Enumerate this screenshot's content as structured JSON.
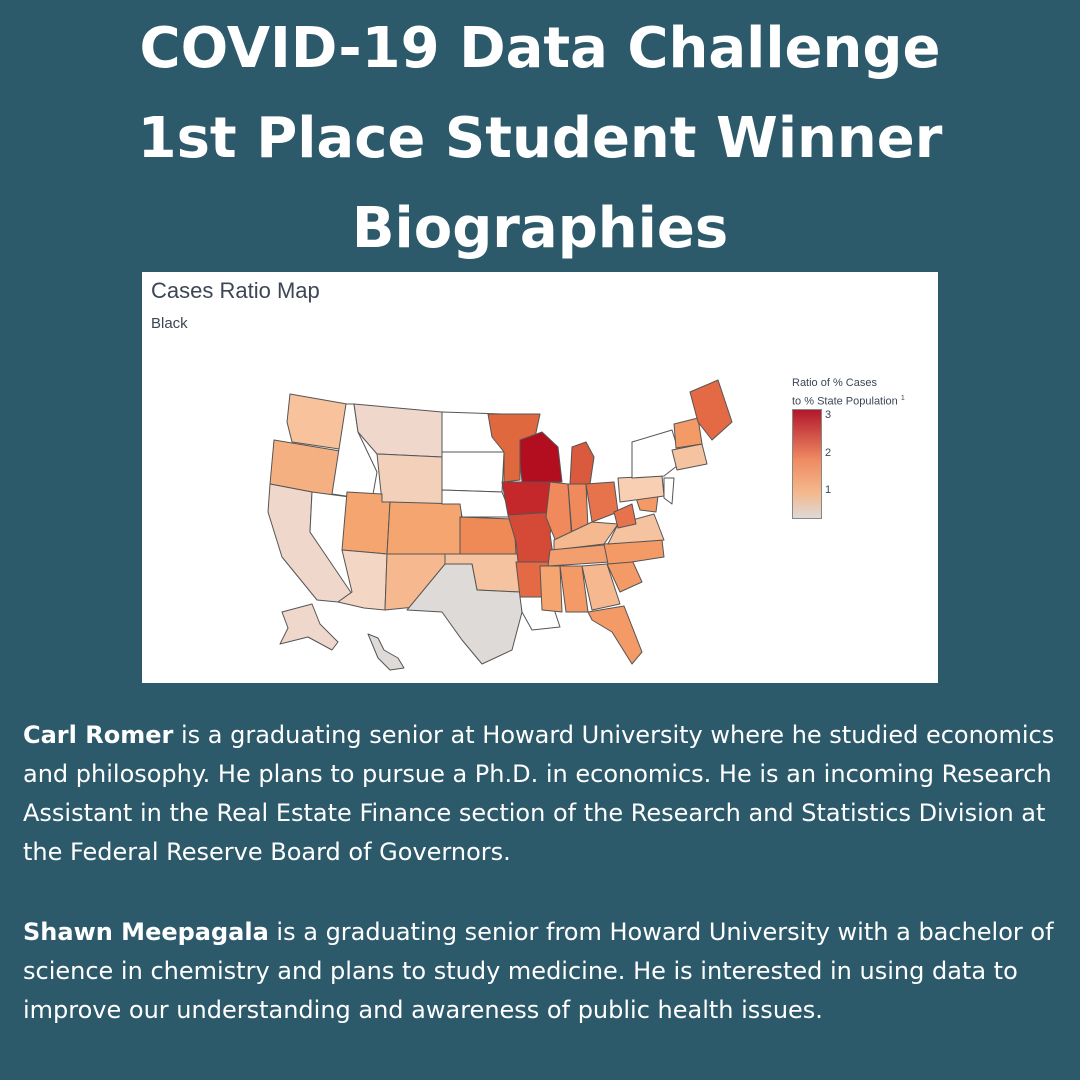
{
  "headline": {
    "line1": "COVID-19 Data Challenge",
    "line2": "1st Place Student Winner",
    "line3": "Biographies"
  },
  "figure": {
    "title": "Cases Ratio Map",
    "subtitle": "Black",
    "legend": {
      "title_line1": "Ratio of % Cases",
      "title_line2": "to % State Population",
      "footnote_mark": "1",
      "ticks": [
        "3",
        "2",
        "1"
      ],
      "colors": [
        "#b2182b",
        "#ef8a62",
        "#dcdcdc"
      ]
    }
  },
  "bios": [
    {
      "name": "Carl Romer",
      "text": " is a graduating senior at Howard University where he studied economics and philosophy. He plans to pursue a Ph.D. in economics. He is an incoming Research Assistant in the Real Estate Finance section of the Research and Statistics Division at the Federal Reserve Board of Governors."
    },
    {
      "name": "Shawn Meepagala",
      "text": " is a graduating senior from Howard University with a bachelor of science in chemistry and plans to study medicine. He is interested in using data to improve our understanding and awareness of public health issues."
    }
  ],
  "colors": {
    "background": "#2d5a6b",
    "text": "#ffffff"
  }
}
